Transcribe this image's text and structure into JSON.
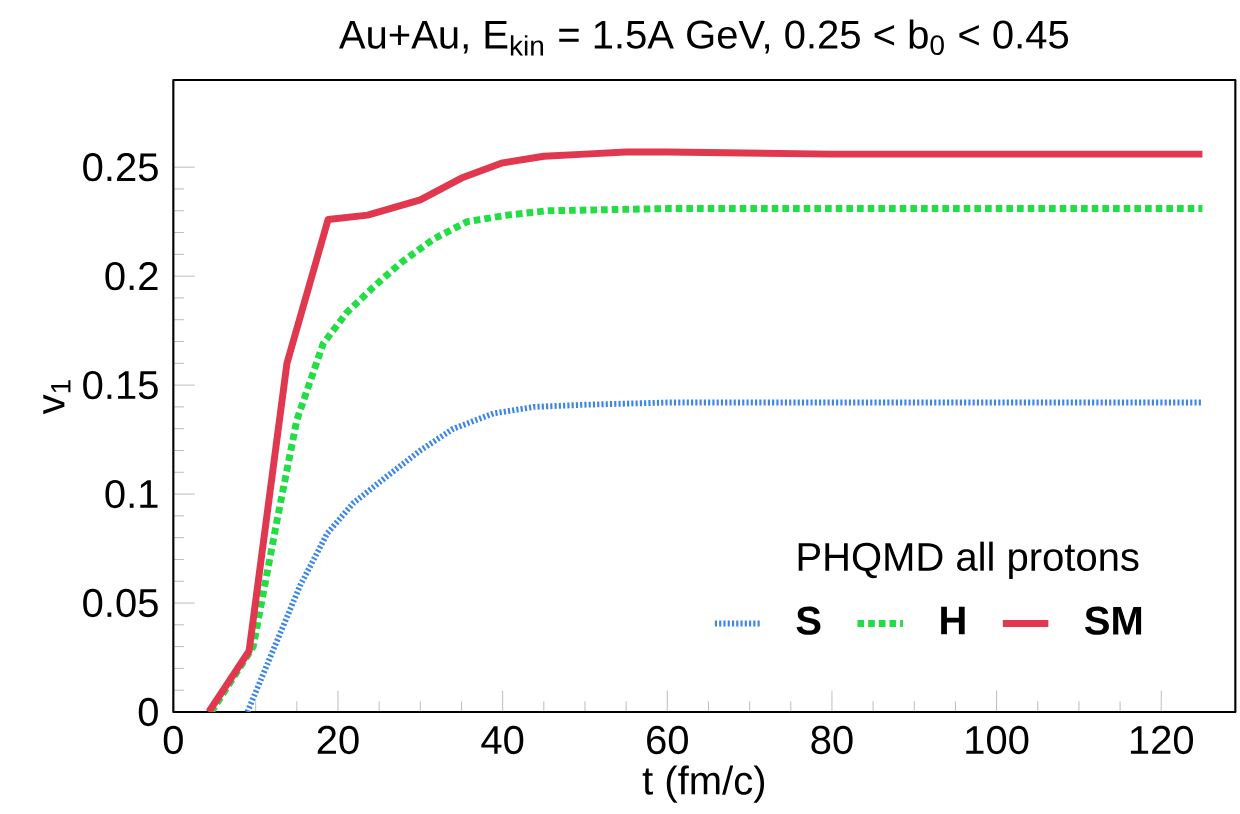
{
  "chart_data": {
    "type": "line",
    "title": "Au+Au, E$_{kin}$ = 1.5A GeV, 0.25 < b$_{0}$ < 0.45",
    "xlabel": "t (fm/c)",
    "ylabel": "v$_{1}$",
    "xlim": [
      0,
      129
    ],
    "ylim": [
      0,
      0.29
    ],
    "xticks": [
      0,
      20,
      40,
      60,
      80,
      100,
      120
    ],
    "yticks": [
      0,
      0.05,
      0.1,
      0.15,
      0.2,
      0.25
    ],
    "legend": "bottom right",
    "legend_title": "PHQMD all protons",
    "series": [
      {
        "name": "S",
        "color": "#3b86e6",
        "line_style": "dotted",
        "x": [
          9,
          12.3,
          15.4,
          18.7,
          21.9,
          25.9,
          30,
          34,
          38.9,
          43.8,
          50,
          60,
          80,
          100,
          125
        ],
        "values": [
          0,
          0.03,
          0.058,
          0.082,
          0.096,
          0.108,
          0.12,
          0.13,
          0.137,
          0.14,
          0.141,
          0.142,
          0.142,
          0.142,
          0.142
        ]
      },
      {
        "name": "H",
        "color": "#22dd44",
        "line_style": "dashed",
        "x": [
          4.6,
          9.7,
          12.6,
          15,
          18.2,
          21,
          24.3,
          27.6,
          31.6,
          35.7,
          40.6,
          45.4,
          60,
          80,
          100,
          125
        ],
        "values": [
          0,
          0.03,
          0.088,
          0.134,
          0.169,
          0.183,
          0.195,
          0.206,
          0.217,
          0.225,
          0.228,
          0.23,
          0.231,
          0.231,
          0.231,
          0.231
        ]
      },
      {
        "name": "SM",
        "color": "#e0384f",
        "line_style": "solid",
        "x": [
          4.3,
          9.2,
          13.8,
          18.8,
          23.6,
          30,
          35,
          40,
          45,
          50,
          55,
          60,
          80,
          100,
          125
        ],
        "values": [
          0,
          0.028,
          0.16,
          0.226,
          0.228,
          0.235,
          0.245,
          0.252,
          0.255,
          0.256,
          0.257,
          0.257,
          0.256,
          0.256,
          0.256
        ]
      }
    ]
  }
}
